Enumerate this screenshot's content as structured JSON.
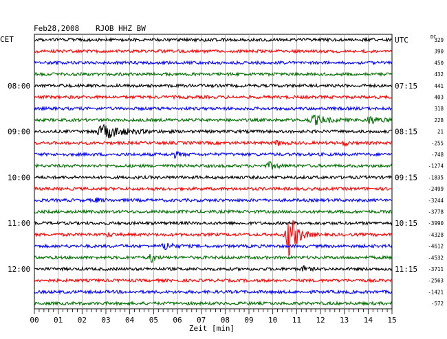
{
  "header": {
    "date": "Feb28,2008",
    "station": "RJOB HHZ BW",
    "left_tz": "CET",
    "right_tz": "UTC",
    "dc_label": "DC"
  },
  "chart_data": {
    "type": "line",
    "title": "Feb28,2008   RJOB HHZ BW",
    "xlabel": "Zeit [min]",
    "ylabel": "",
    "xlim": [
      0,
      15
    ],
    "x_ticks": [
      "00",
      "01",
      "02",
      "03",
      "04",
      "05",
      "06",
      "07",
      "08",
      "09",
      "10",
      "11",
      "12",
      "13",
      "14",
      "15"
    ],
    "grid": true,
    "trace_colors": [
      "#000000",
      "#ff0000",
      "#0000ff",
      "#007000"
    ],
    "left_time_labels": [
      {
        "trace": 4,
        "label": "08:00"
      },
      {
        "trace": 8,
        "label": "09:00"
      },
      {
        "trace": 12,
        "label": "10:00"
      },
      {
        "trace": 16,
        "label": "11:00"
      },
      {
        "trace": 20,
        "label": "12:00"
      }
    ],
    "right_time_labels": [
      {
        "trace": 0,
        "label": "UTC"
      },
      {
        "trace": 4,
        "label": "07:15"
      },
      {
        "trace": 8,
        "label": "08:15"
      },
      {
        "trace": 12,
        "label": "09:15"
      },
      {
        "trace": 16,
        "label": "10:15"
      },
      {
        "trace": 20,
        "label": "11:15"
      }
    ],
    "dc_offsets": [
      "329",
      "390",
      "450",
      "432",
      "441",
      "403",
      "318",
      "228",
      "21",
      "-255",
      "-748",
      "-1274",
      "-1835",
      "-2499",
      "-3244",
      "-3778",
      "-3990",
      "-4328",
      "-4612",
      "-4532",
      "-3711",
      "-2563",
      "-1421",
      "-572"
    ],
    "events": [
      {
        "trace": 7,
        "minute": 11.8,
        "amplitude": 0.35,
        "duration": 0.8
      },
      {
        "trace": 7,
        "minute": 14.1,
        "amplitude": 0.3,
        "duration": 0.6
      },
      {
        "trace": 8,
        "minute": 3.0,
        "amplitude": 0.55,
        "duration": 1.2
      },
      {
        "trace": 9,
        "minute": 10.2,
        "amplitude": 0.2,
        "duration": 0.3
      },
      {
        "trace": 9,
        "minute": 13.0,
        "amplitude": 0.25,
        "duration": 0.2
      },
      {
        "trace": 10,
        "minute": 5.9,
        "amplitude": 0.2,
        "duration": 0.4
      },
      {
        "trace": 11,
        "minute": 9.9,
        "amplitude": 0.25,
        "duration": 0.5
      },
      {
        "trace": 14,
        "minute": 2.6,
        "amplitude": 0.15,
        "duration": 0.4
      },
      {
        "trace": 17,
        "minute": 10.7,
        "amplitude": 1.9,
        "duration": 0.5
      },
      {
        "trace": 17,
        "minute": 3.1,
        "amplitude": 0.15,
        "duration": 0.3
      },
      {
        "trace": 18,
        "minute": 5.5,
        "amplitude": 0.35,
        "duration": 0.4
      },
      {
        "trace": 19,
        "minute": 4.9,
        "amplitude": 0.45,
        "duration": 0.2
      },
      {
        "trace": 20,
        "minute": 11.3,
        "amplitude": 0.2,
        "duration": 0.3
      }
    ]
  }
}
